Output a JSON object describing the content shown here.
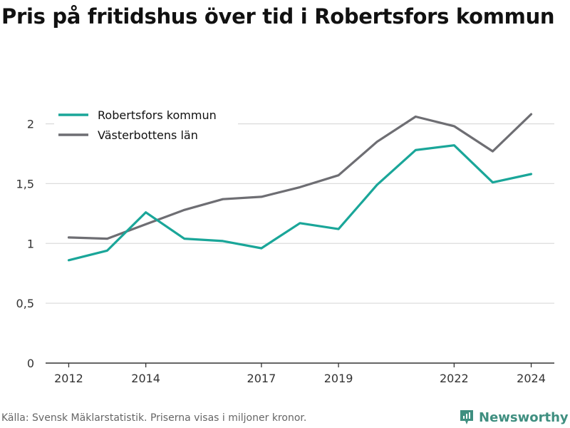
{
  "title": "Pris på fritidshus över tid i Robertsfors kommun",
  "source": "Källa: Svensk Mäklarstatistik. Priserna visas i miljoner kronor.",
  "brand": {
    "name": "Newsworthy",
    "color": "#3f8f80"
  },
  "chart_data": {
    "type": "line",
    "x": [
      2012,
      2013,
      2014,
      2015,
      2016,
      2017,
      2018,
      2019,
      2020,
      2021,
      2022,
      2023,
      2024
    ],
    "x_ticks": [
      "2012",
      "2014",
      "2017",
      "2019",
      "2022",
      "2024"
    ],
    "x_tick_values": [
      2012,
      2014,
      2017,
      2019,
      2022,
      2024
    ],
    "y_ticks": [
      "0",
      "0,5",
      "1",
      "1,5",
      "2"
    ],
    "y_tick_values": [
      0,
      0.5,
      1,
      1.5,
      2
    ],
    "ylim": [
      0,
      2.2
    ],
    "xlim": [
      2011.4,
      2024.6
    ],
    "grid": true,
    "legend_position": "top-left",
    "series": [
      {
        "name": "Robertsfors kommun",
        "color": "#1aa699",
        "values": [
          0.86,
          0.94,
          1.26,
          1.04,
          1.02,
          0.96,
          1.17,
          1.12,
          1.49,
          1.78,
          1.82,
          1.51,
          1.58
        ]
      },
      {
        "name": "Västerbottens län",
        "color": "#6e6e73",
        "values": [
          1.05,
          1.04,
          1.16,
          1.28,
          1.37,
          1.39,
          1.47,
          1.57,
          1.85,
          2.06,
          1.98,
          1.77,
          2.08
        ]
      }
    ]
  }
}
